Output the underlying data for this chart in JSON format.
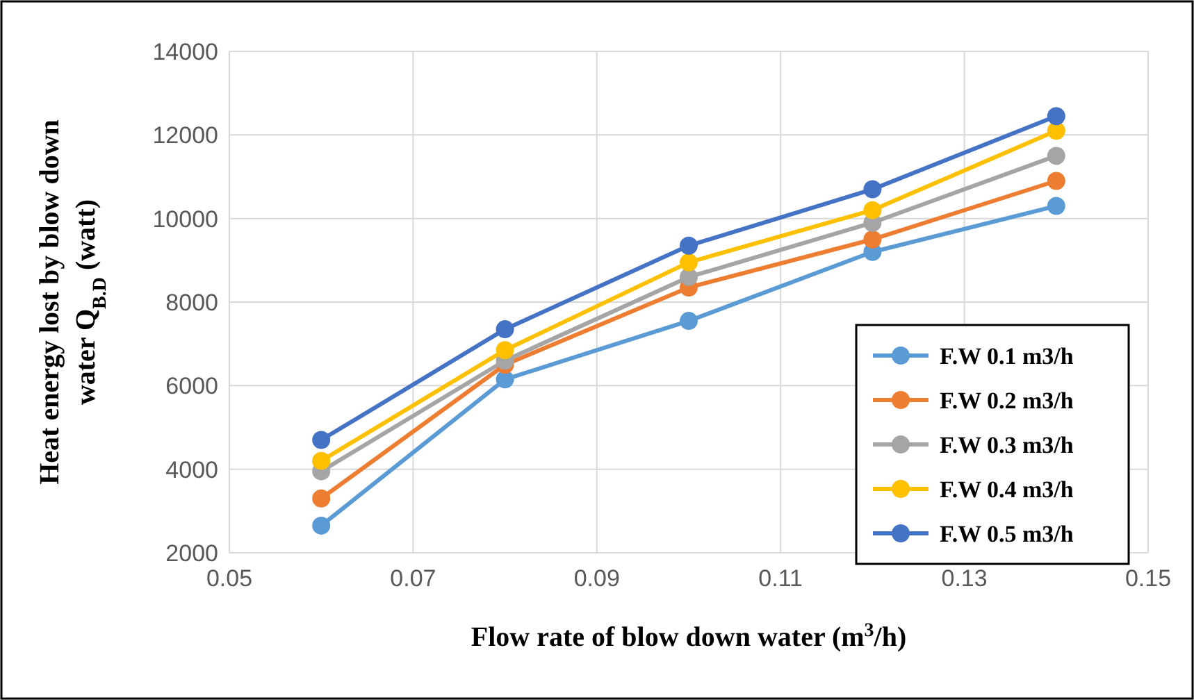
{
  "chart_data": {
    "type": "line",
    "xlabel": "Flow rate of blow down water (m$^{3}$/h)",
    "ylabel": "Heat energy lost by blow down water Q$_{B.D}$ (watt)",
    "x": [
      0.06,
      0.08,
      0.1,
      0.12,
      0.14
    ],
    "xlim": [
      0.05,
      0.15
    ],
    "xticks": [
      0.05,
      0.07,
      0.09,
      0.11,
      0.13,
      0.15
    ],
    "ylim": [
      2000,
      14000
    ],
    "yticks": [
      2000,
      4000,
      6000,
      8000,
      10000,
      12000,
      14000
    ],
    "grid": true,
    "legend": "bottom right",
    "marker": "circle",
    "line_style": "solid",
    "series": [
      {
        "name": "F.W 0.1 m3/h",
        "color": "#5b9bd5",
        "values": [
          2650,
          6150,
          7550,
          9200,
          10300
        ]
      },
      {
        "name": "F.W 0.2 m3/h",
        "color": "#ed7d31",
        "values": [
          3300,
          6500,
          8350,
          9500,
          10900
        ]
      },
      {
        "name": "F.W 0.3 m3/h",
        "color": "#a5a5a5",
        "values": [
          3950,
          6600,
          8600,
          9900,
          11500
        ]
      },
      {
        "name": "F.W 0.4 m3/h",
        "color": "#ffc000",
        "values": [
          4200,
          6850,
          8950,
          10200,
          12100
        ]
      },
      {
        "name": "F.W 0.5 m3/h",
        "color": "#4472c4",
        "values": [
          4700,
          7350,
          9350,
          10700,
          12450
        ]
      }
    ]
  }
}
